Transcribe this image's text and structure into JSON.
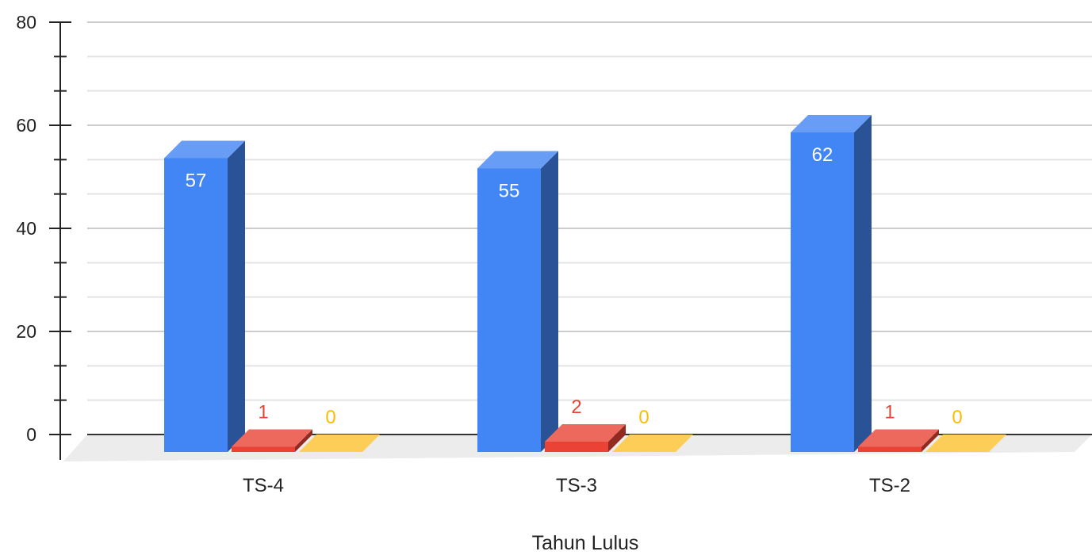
{
  "chart_data": {
    "type": "bar",
    "title": "",
    "xlabel": "Tahun Lulus",
    "ylabel": "",
    "categories": [
      "TS-4",
      "TS-3",
      "TS-2"
    ],
    "series": [
      {
        "values": [
          57,
          55,
          62
        ],
        "color": "#4285f4",
        "label_color": "#ffffff",
        "label_position": "inside"
      },
      {
        "values": [
          1,
          2,
          1
        ],
        "color": "#ea4335",
        "label_color": "#ea4335",
        "label_position": "above"
      },
      {
        "values": [
          0,
          0,
          0
        ],
        "color": "#fbc02d",
        "label_color": "#fbbc04",
        "label_position": "above"
      }
    ],
    "ylim": [
      0,
      80
    ],
    "y_ticks": [
      "0",
      "20",
      "40",
      "60",
      "80"
    ],
    "grid": true,
    "three_d": true,
    "legend": "none"
  }
}
